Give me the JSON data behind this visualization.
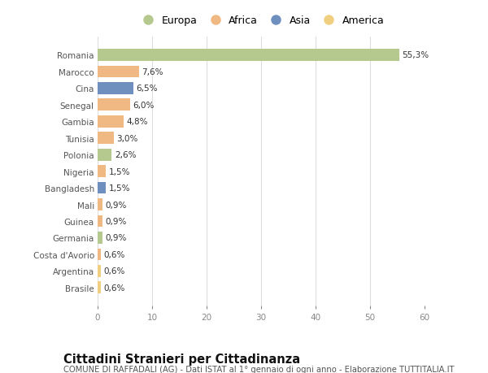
{
  "countries": [
    "Romania",
    "Marocco",
    "Cina",
    "Senegal",
    "Gambia",
    "Tunisia",
    "Polonia",
    "Nigeria",
    "Bangladesh",
    "Mali",
    "Guinea",
    "Germania",
    "Costa d'Avorio",
    "Argentina",
    "Brasile"
  ],
  "values": [
    55.3,
    7.6,
    6.5,
    6.0,
    4.8,
    3.0,
    2.6,
    1.5,
    1.5,
    0.9,
    0.9,
    0.9,
    0.6,
    0.6,
    0.6
  ],
  "labels": [
    "55,3%",
    "7,6%",
    "6,5%",
    "6,0%",
    "4,8%",
    "3,0%",
    "2,6%",
    "1,5%",
    "1,5%",
    "0,9%",
    "0,9%",
    "0,9%",
    "0,6%",
    "0,6%",
    "0,6%"
  ],
  "continents": [
    "Europa",
    "Africa",
    "Asia",
    "Africa",
    "Africa",
    "Africa",
    "Europa",
    "Africa",
    "Asia",
    "Africa",
    "Africa",
    "Europa",
    "Africa",
    "America",
    "America"
  ],
  "colors": {
    "Europa": "#b5c98e",
    "Africa": "#f0b882",
    "Asia": "#6f8fbf",
    "America": "#f0d080"
  },
  "legend_order": [
    "Europa",
    "Africa",
    "Asia",
    "America"
  ],
  "title": "Cittadini Stranieri per Cittadinanza",
  "subtitle": "COMUNE DI RAFFADALI (AG) - Dati ISTAT al 1° gennaio di ogni anno - Elaborazione TUTTITALIA.IT",
  "xlim": [
    0,
    60
  ],
  "xticks": [
    0,
    10,
    20,
    30,
    40,
    50,
    60
  ],
  "bg_color": "#ffffff",
  "grid_color": "#dddddd",
  "bar_height": 0.72,
  "label_fontsize": 7.5,
  "tick_fontsize": 7.5,
  "title_fontsize": 10.5,
  "subtitle_fontsize": 7.2,
  "legend_fontsize": 9
}
